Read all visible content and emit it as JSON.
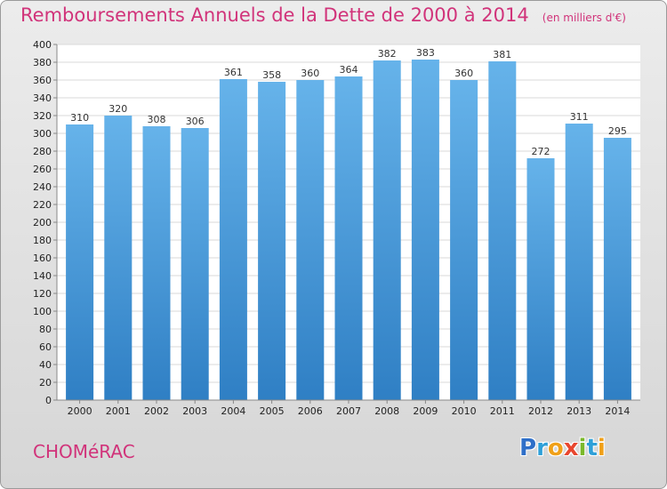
{
  "chart_data": {
    "type": "bar",
    "title": "Remboursements Annuels de la Dette de 2000 à 2014",
    "unit_note": "(en milliers d'€)",
    "categories": [
      "2000",
      "2001",
      "2002",
      "2003",
      "2004",
      "2005",
      "2006",
      "2007",
      "2008",
      "2009",
      "2010",
      "2011",
      "2012",
      "2013",
      "2014"
    ],
    "values": [
      310,
      320,
      308,
      306,
      361,
      358,
      360,
      364,
      382,
      383,
      360,
      381,
      272,
      311,
      295
    ],
    "ylim": [
      0,
      400
    ],
    "yticks": [
      0,
      20,
      40,
      60,
      80,
      100,
      120,
      140,
      160,
      180,
      200,
      220,
      240,
      260,
      280,
      300,
      320,
      340,
      360,
      380,
      400
    ],
    "grid": true,
    "legend": "none",
    "colors": {
      "bar_light": "#66b3ea",
      "bar_dark": "#2f7fc4",
      "title": "#d1337a"
    }
  },
  "footer": {
    "town": "CHOMéRAC",
    "brand_letters": [
      {
        "ch": "P",
        "color": "#2f6fc8"
      },
      {
        "ch": "r",
        "color": "#2fa0d8"
      },
      {
        "ch": "o",
        "color": "#f0a018"
      },
      {
        "ch": "x",
        "color": "#e8462e"
      },
      {
        "ch": "i",
        "color": "#7ab82a"
      },
      {
        "ch": "t",
        "color": "#2fa0d8"
      },
      {
        "ch": "i",
        "color": "#f0a018"
      }
    ]
  }
}
